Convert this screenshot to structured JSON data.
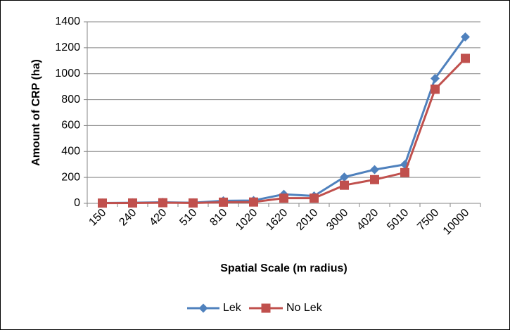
{
  "chart_data": {
    "type": "line",
    "title": "",
    "xlabel": "Spatial Scale (m radius)",
    "ylabel": "Amount of CRP (ha)",
    "categories": [
      "150",
      "240",
      "420",
      "510",
      "810",
      "1020",
      "1620",
      "2010",
      "3000",
      "4020",
      "5010",
      "7500",
      "10000"
    ],
    "ylim": [
      0,
      1400
    ],
    "yticks": [
      0,
      200,
      400,
      600,
      800,
      1000,
      1200,
      1400
    ],
    "grid": true,
    "legend_position": "bottom",
    "series": [
      {
        "name": "Lek",
        "color": "#4f81bd",
        "marker": "diamond",
        "values": [
          3,
          5,
          8,
          5,
          20,
          22,
          70,
          57,
          203,
          260,
          300,
          963,
          1283
        ]
      },
      {
        "name": "No Lek",
        "color": "#c0504d",
        "marker": "square",
        "values": [
          2,
          3,
          5,
          3,
          9,
          10,
          40,
          40,
          140,
          183,
          237,
          880,
          1118
        ]
      }
    ]
  }
}
